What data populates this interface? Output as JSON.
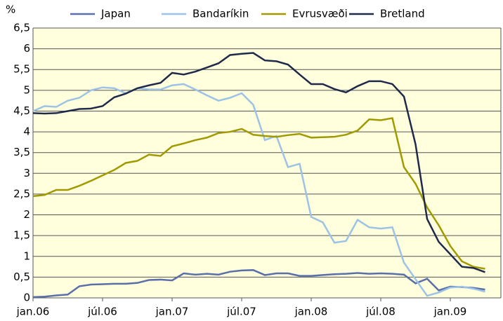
{
  "chart_data": {
    "type": "line",
    "y_label": "%",
    "categories": [
      "jan.06",
      null,
      null,
      null,
      null,
      null,
      "júl.06",
      null,
      null,
      null,
      null,
      null,
      "jan.07",
      null,
      null,
      null,
      null,
      null,
      "júl.07",
      null,
      null,
      null,
      null,
      null,
      "jan.08",
      null,
      null,
      null,
      null,
      null,
      "júl.08",
      null,
      null,
      null,
      null,
      null,
      "jan.09",
      null,
      null,
      null
    ],
    "series": [
      {
        "name": "Japan",
        "color": "#5a6ea8",
        "values": [
          0.02,
          0.03,
          0.06,
          0.08,
          0.28,
          0.32,
          0.33,
          0.34,
          0.34,
          0.36,
          0.43,
          0.44,
          0.42,
          0.59,
          0.56,
          0.58,
          0.56,
          0.63,
          0.66,
          0.67,
          0.55,
          0.59,
          0.59,
          0.53,
          0.53,
          0.55,
          0.57,
          0.58,
          0.6,
          0.58,
          0.59,
          0.58,
          0.56,
          0.35,
          0.46,
          0.18,
          0.27,
          0.26,
          0.24,
          0.2
        ]
      },
      {
        "name": "Bandaríkin",
        "color": "#9cc3e6",
        "values": [
          4.5,
          4.62,
          4.6,
          4.75,
          4.82,
          5.0,
          5.07,
          5.05,
          4.93,
          5.05,
          5.02,
          5.02,
          5.12,
          5.15,
          5.02,
          4.88,
          4.75,
          4.82,
          4.93,
          4.65,
          3.8,
          3.9,
          3.15,
          3.23,
          1.95,
          1.82,
          1.33,
          1.37,
          1.88,
          1.7,
          1.67,
          1.7,
          0.85,
          0.45,
          0.05,
          0.13,
          0.25,
          0.27,
          0.22,
          0.15
        ]
      },
      {
        "name": "Evrusvæði",
        "color": "#a09a00",
        "values": [
          2.45,
          2.48,
          2.6,
          2.6,
          2.7,
          2.82,
          2.95,
          3.08,
          3.25,
          3.3,
          3.45,
          3.42,
          3.65,
          3.72,
          3.8,
          3.86,
          3.97,
          4.0,
          4.07,
          3.93,
          3.9,
          3.88,
          3.92,
          3.95,
          3.86,
          3.87,
          3.88,
          3.93,
          4.03,
          4.3,
          4.28,
          4.33,
          3.15,
          2.75,
          2.18,
          1.75,
          1.25,
          0.88,
          0.75,
          0.7
        ]
      },
      {
        "name": "Bretland",
        "color": "#1f2a4a",
        "values": [
          4.45,
          4.44,
          4.45,
          4.5,
          4.55,
          4.56,
          4.62,
          4.83,
          4.92,
          5.05,
          5.12,
          5.18,
          5.42,
          5.38,
          5.45,
          5.55,
          5.65,
          5.85,
          5.88,
          5.9,
          5.72,
          5.7,
          5.62,
          5.38,
          5.15,
          5.15,
          5.03,
          4.95,
          5.1,
          5.22,
          5.22,
          5.15,
          4.85,
          3.7,
          1.9,
          1.35,
          1.05,
          0.75,
          0.72,
          0.62
        ]
      }
    ],
    "ylim": [
      0,
      6.5
    ],
    "yticks": [
      0,
      {
        "value": 0.5,
        "label": "0,5"
      },
      1,
      {
        "value": 1.5,
        "label": "1,5"
      },
      2,
      {
        "value": 2.5,
        "label": "2,5"
      },
      3,
      {
        "value": 3.5,
        "label": "3,5"
      },
      4,
      {
        "value": 4.5,
        "label": "4,5"
      },
      5,
      {
        "value": 5.5,
        "label": "5,5"
      },
      6,
      {
        "value": 6.5,
        "label": "6,5"
      }
    ],
    "grid": true,
    "legend": "top"
  }
}
